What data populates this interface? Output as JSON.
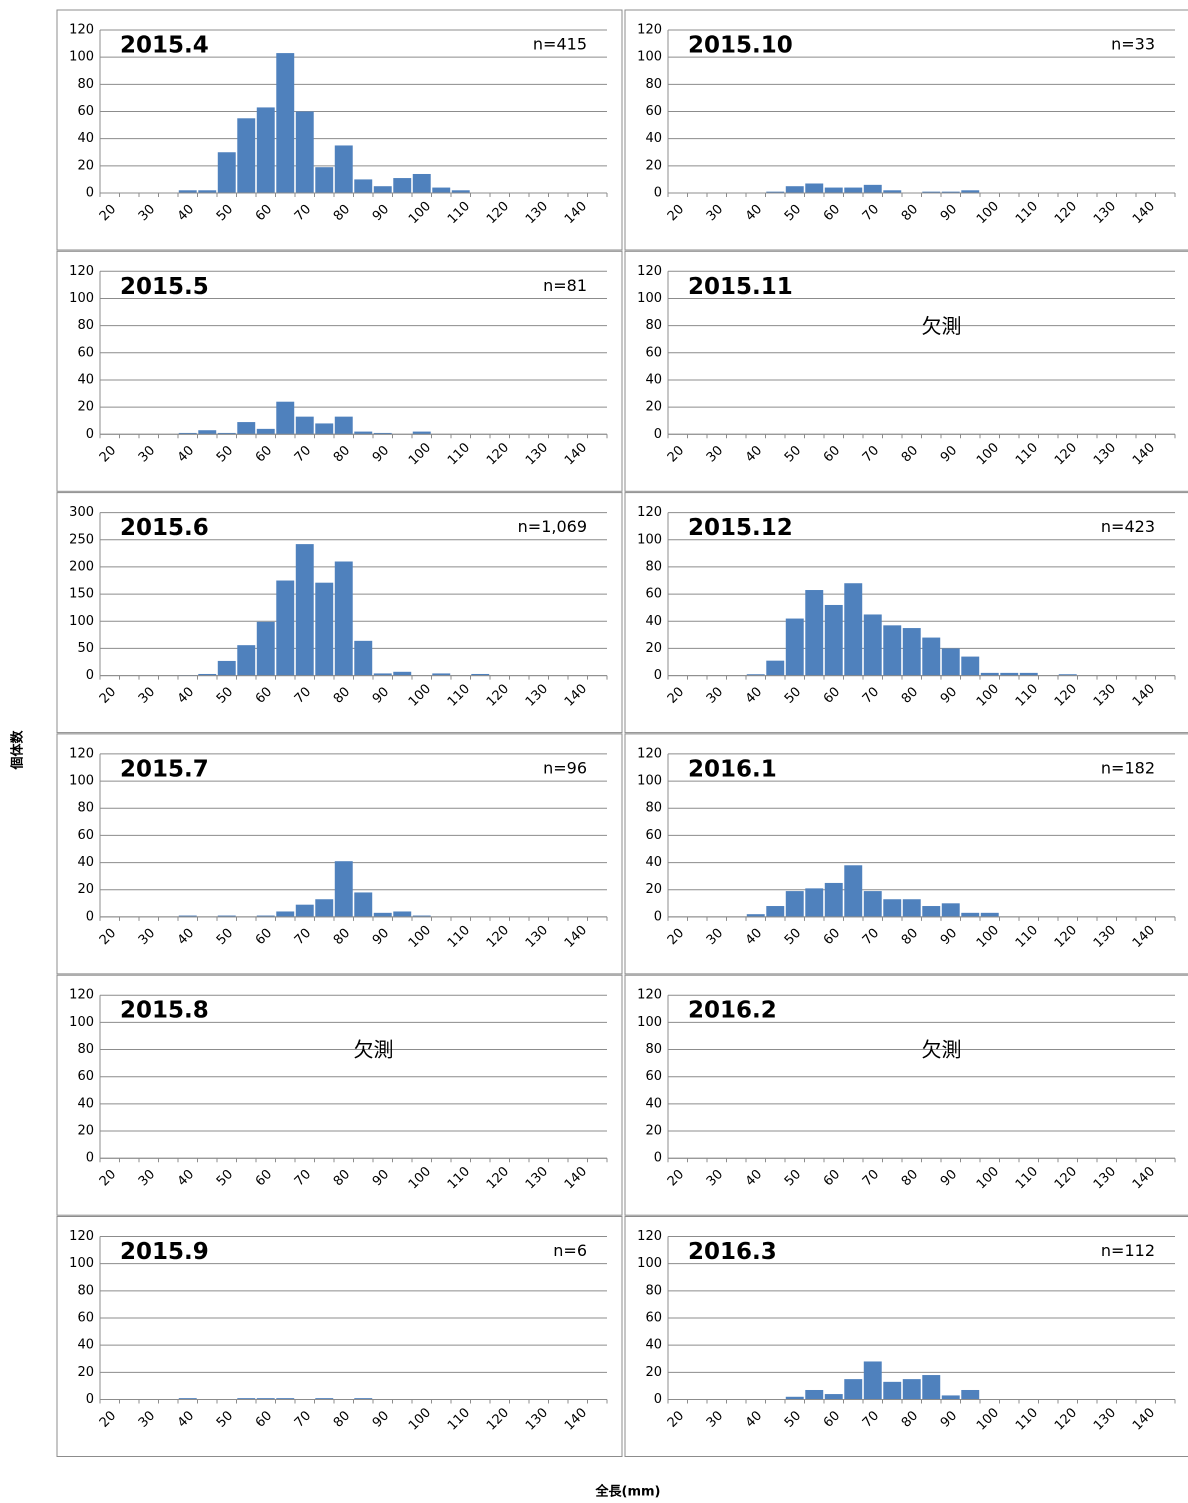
{
  "ylabel": "個体数",
  "xlabel": "全長(mm)",
  "chart_data": [
    {
      "type": "bar",
      "title": "2015.4",
      "annotation": "n=415",
      "color": "#4f81bd",
      "grid": true,
      "categories": [
        "20",
        null,
        "30",
        null,
        "40",
        null,
        "50",
        null,
        "60",
        null,
        "70",
        null,
        "80",
        null,
        "90",
        null,
        "100",
        null,
        "110",
        null,
        "120",
        null,
        "130",
        null,
        "140",
        null
      ],
      "values": [
        0,
        0,
        0,
        0,
        2,
        2,
        30,
        55,
        63,
        103,
        60,
        19,
        35,
        10,
        5,
        11,
        14,
        4,
        2,
        0,
        0,
        0,
        0,
        0,
        0,
        0
      ],
      "ylim": [
        0,
        120
      ],
      "yticks": [
        0,
        20,
        40,
        60,
        80,
        100,
        120
      ]
    },
    {
      "type": "bar",
      "title": "2015.5",
      "annotation": "n=81",
      "color": "#4f81bd",
      "grid": true,
      "categories": [
        "20",
        null,
        "30",
        null,
        "40",
        null,
        "50",
        null,
        "60",
        null,
        "70",
        null,
        "80",
        null,
        "90",
        null,
        "100",
        null,
        "110",
        null,
        "120",
        null,
        "130",
        null,
        "140",
        null
      ],
      "values": [
        0,
        0,
        0,
        0,
        1,
        3,
        1,
        9,
        4,
        24,
        13,
        8,
        13,
        2,
        1,
        0,
        2,
        0,
        0,
        0,
        0,
        0,
        0,
        0,
        0,
        0
      ],
      "ylim": [
        0,
        120
      ],
      "yticks": [
        0,
        20,
        40,
        60,
        80,
        100,
        120
      ]
    },
    {
      "type": "bar",
      "title": "2015.6",
      "annotation": "n=1,069",
      "color": "#4f81bd",
      "grid": true,
      "categories": [
        "20",
        null,
        "30",
        null,
        "40",
        null,
        "50",
        null,
        "60",
        null,
        "70",
        null,
        "80",
        null,
        "90",
        null,
        "100",
        null,
        "110",
        null,
        "120",
        null,
        "130",
        null,
        "140",
        null
      ],
      "values": [
        0,
        0,
        0,
        0,
        1,
        3,
        27,
        56,
        99,
        175,
        242,
        171,
        210,
        64,
        4,
        7,
        0,
        4,
        0,
        3,
        0,
        0,
        0,
        0,
        0,
        0
      ],
      "ylim": [
        0,
        300
      ],
      "yticks": [
        0,
        50,
        100,
        150,
        200,
        250,
        300
      ]
    },
    {
      "type": "bar",
      "title": "2015.7",
      "annotation": "n=96",
      "color": "#4f81bd",
      "grid": true,
      "categories": [
        "20",
        null,
        "30",
        null,
        "40",
        null,
        "50",
        null,
        "60",
        null,
        "70",
        null,
        "80",
        null,
        "90",
        null,
        "100",
        null,
        "110",
        null,
        "120",
        null,
        "130",
        null,
        "140",
        null
      ],
      "values": [
        0,
        0,
        0,
        0,
        1,
        0,
        1,
        0,
        1,
        4,
        9,
        13,
        41,
        18,
        3,
        4,
        1,
        0,
        0,
        0,
        0,
        0,
        0,
        0,
        0,
        0
      ],
      "ylim": [
        0,
        120
      ],
      "yticks": [
        0,
        20,
        40,
        60,
        80,
        100,
        120
      ]
    },
    {
      "type": "bar",
      "title": "2015.8",
      "annotation": "欠測",
      "color": "#4f81bd",
      "grid": true,
      "categories": [
        "20",
        null,
        "30",
        null,
        "40",
        null,
        "50",
        null,
        "60",
        null,
        "70",
        null,
        "80",
        null,
        "90",
        null,
        "100",
        null,
        "110",
        null,
        "120",
        null,
        "130",
        null,
        "140",
        null
      ],
      "ylim": [
        0,
        120
      ],
      "yticks": [
        0,
        20,
        40,
        60,
        80,
        100,
        120
      ]
    },
    {
      "type": "bar",
      "title": "2015.9",
      "annotation": "n=6",
      "color": "#4f81bd",
      "grid": true,
      "categories": [
        "20",
        null,
        "30",
        null,
        "40",
        null,
        "50",
        null,
        "60",
        null,
        "70",
        null,
        "80",
        null,
        "90",
        null,
        "100",
        null,
        "110",
        null,
        "120",
        null,
        "130",
        null,
        "140",
        null
      ],
      "values": [
        0,
        0,
        0,
        0,
        1,
        0,
        0,
        1,
        1,
        1,
        0,
        1,
        0,
        1,
        0,
        0,
        0,
        0,
        0,
        0,
        0,
        0,
        0,
        0,
        0,
        0
      ],
      "ylim": [
        0,
        120
      ],
      "yticks": [
        0,
        20,
        40,
        60,
        80,
        100,
        120
      ]
    },
    {
      "type": "bar",
      "title": "2015.10",
      "annotation": "n=33",
      "color": "#4f81bd",
      "grid": true,
      "categories": [
        "20",
        null,
        "30",
        null,
        "40",
        null,
        "50",
        null,
        "60",
        null,
        "70",
        null,
        "80",
        null,
        "90",
        null,
        "100",
        null,
        "110",
        null,
        "120",
        null,
        "130",
        null,
        "140",
        null
      ],
      "values": [
        0,
        0,
        0,
        0,
        0,
        1,
        5,
        7,
        4,
        4,
        6,
        2,
        0,
        1,
        1,
        2,
        0,
        0,
        0,
        0,
        0,
        0,
        0,
        0,
        0,
        0
      ],
      "ylim": [
        0,
        120
      ],
      "yticks": [
        0,
        20,
        40,
        60,
        80,
        100,
        120
      ]
    },
    {
      "type": "bar",
      "title": "2015.11",
      "annotation": "欠測",
      "color": "#4f81bd",
      "grid": true,
      "categories": [
        "20",
        null,
        "30",
        null,
        "40",
        null,
        "50",
        null,
        "60",
        null,
        "70",
        null,
        "80",
        null,
        "90",
        null,
        "100",
        null,
        "110",
        null,
        "120",
        null,
        "130",
        null,
        "140",
        null
      ],
      "ylim": [
        0,
        120
      ],
      "yticks": [
        0,
        20,
        40,
        60,
        80,
        100,
        120
      ]
    },
    {
      "type": "bar",
      "title": "2015.12",
      "annotation": "n=423",
      "color": "#4f81bd",
      "grid": true,
      "categories": [
        "20",
        null,
        "30",
        null,
        "40",
        null,
        "50",
        null,
        "60",
        null,
        "70",
        null,
        "80",
        null,
        "90",
        null,
        "100",
        null,
        "110",
        null,
        "120",
        null,
        "130",
        null,
        "140",
        null
      ],
      "values": [
        0,
        0,
        0,
        0,
        1,
        11,
        42,
        63,
        52,
        68,
        45,
        37,
        35,
        28,
        20,
        14,
        2,
        2,
        2,
        0,
        1,
        0,
        0,
        0,
        0,
        0
      ],
      "ylim": [
        0,
        120
      ],
      "yticks": [
        0,
        20,
        40,
        60,
        80,
        100,
        120
      ]
    },
    {
      "type": "bar",
      "title": "2016.1",
      "annotation": "n=182",
      "color": "#4f81bd",
      "grid": true,
      "categories": [
        "20",
        null,
        "30",
        null,
        "40",
        null,
        "50",
        null,
        "60",
        null,
        "70",
        null,
        "80",
        null,
        "90",
        null,
        "100",
        null,
        "110",
        null,
        "120",
        null,
        "130",
        null,
        "140",
        null
      ],
      "values": [
        0,
        0,
        0,
        0,
        2,
        8,
        19,
        21,
        25,
        38,
        19,
        13,
        13,
        8,
        10,
        3,
        3,
        0,
        0,
        0,
        0,
        0,
        0,
        0,
        0,
        0
      ],
      "ylim": [
        0,
        120
      ],
      "yticks": [
        0,
        20,
        40,
        60,
        80,
        100,
        120
      ]
    },
    {
      "type": "bar",
      "title": "2016.2",
      "annotation": "欠測",
      "color": "#4f81bd",
      "grid": true,
      "categories": [
        "20",
        null,
        "30",
        null,
        "40",
        null,
        "50",
        null,
        "60",
        null,
        "70",
        null,
        "80",
        null,
        "90",
        null,
        "100",
        null,
        "110",
        null,
        "120",
        null,
        "130",
        null,
        "140",
        null
      ],
      "ylim": [
        0,
        120
      ],
      "yticks": [
        0,
        20,
        40,
        60,
        80,
        100,
        120
      ]
    },
    {
      "type": "bar",
      "title": "2016.3",
      "annotation": "n=112",
      "color": "#4f81bd",
      "grid": true,
      "categories": [
        "20",
        null,
        "30",
        null,
        "40",
        null,
        "50",
        null,
        "60",
        null,
        "70",
        null,
        "80",
        null,
        "90",
        null,
        "100",
        null,
        "110",
        null,
        "120",
        null,
        "130",
        null,
        "140",
        null
      ],
      "values": [
        0,
        0,
        0,
        0,
        0,
        0,
        2,
        7,
        4,
        15,
        28,
        13,
        15,
        18,
        3,
        7,
        0,
        0,
        0,
        0,
        0,
        0,
        0,
        0,
        0,
        0
      ],
      "ylim": [
        0,
        120
      ],
      "yticks": [
        0,
        20,
        40,
        60,
        80,
        100,
        120
      ]
    }
  ]
}
